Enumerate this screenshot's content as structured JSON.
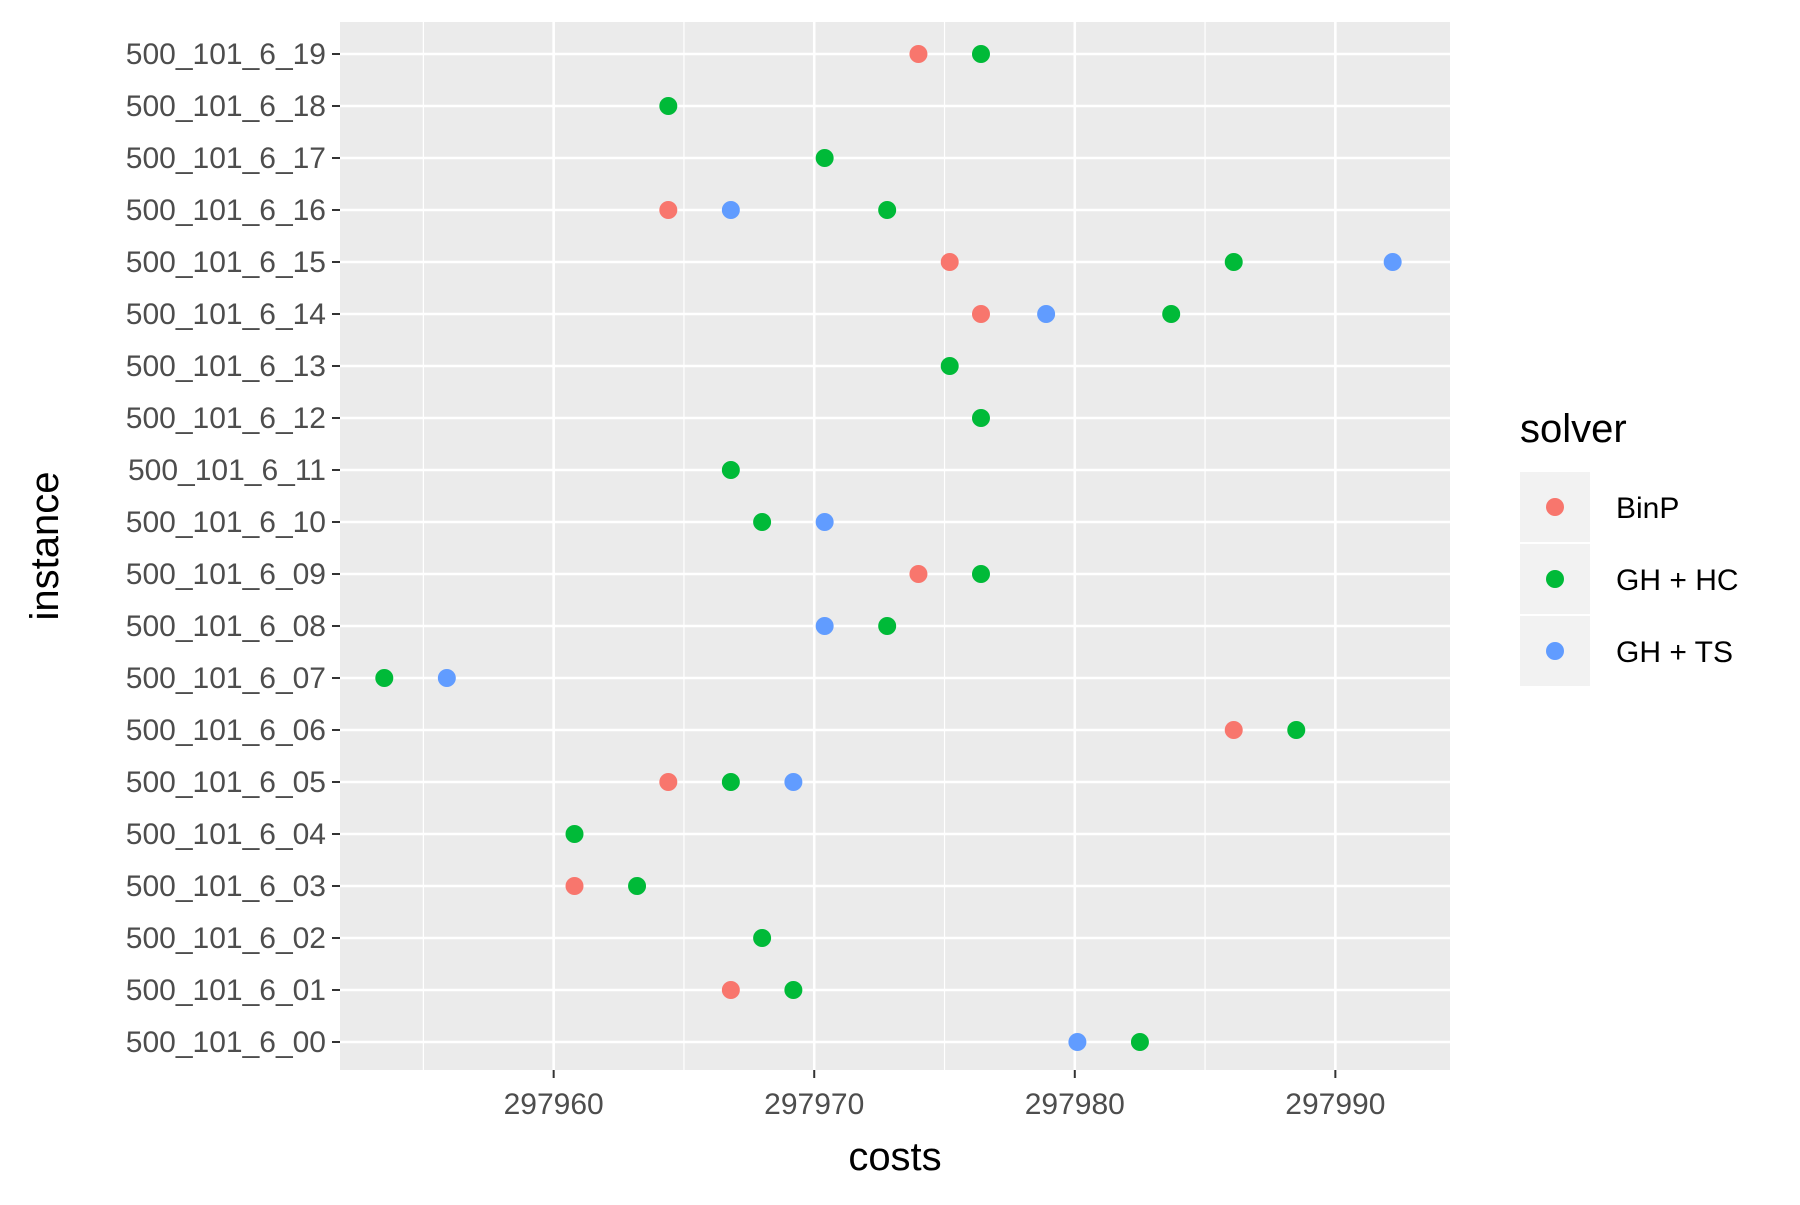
{
  "chart_data": {
    "type": "scatter",
    "xlabel": "costs",
    "ylabel": "instance",
    "xlim": [
      297951.8,
      297994.4
    ],
    "x_ticks": [
      297960,
      297970,
      297980,
      297990
    ],
    "x_tick_labels": [
      "297960",
      "297970",
      "297980",
      "297990"
    ],
    "x_minor_ticks": [
      297955,
      297965,
      297975,
      297985
    ],
    "grid": true,
    "categories": [
      "500_101_6_00",
      "500_101_6_01",
      "500_101_6_02",
      "500_101_6_03",
      "500_101_6_04",
      "500_101_6_05",
      "500_101_6_06",
      "500_101_6_07",
      "500_101_6_08",
      "500_101_6_09",
      "500_101_6_10",
      "500_101_6_11",
      "500_101_6_12",
      "500_101_6_13",
      "500_101_6_14",
      "500_101_6_15",
      "500_101_6_16",
      "500_101_6_17",
      "500_101_6_18",
      "500_101_6_19"
    ],
    "legend": {
      "title": "solver",
      "position": "right"
    },
    "series": [
      {
        "name": "BinP",
        "color": "#F8766D",
        "points": [
          {
            "instance": "500_101_6_19",
            "x": 297974.0
          },
          {
            "instance": "500_101_6_16",
            "x": 297964.4
          },
          {
            "instance": "500_101_6_15",
            "x": 297975.2
          },
          {
            "instance": "500_101_6_14",
            "x": 297976.4
          },
          {
            "instance": "500_101_6_09",
            "x": 297974.0
          },
          {
            "instance": "500_101_6_06",
            "x": 297986.1
          },
          {
            "instance": "500_101_6_05",
            "x": 297964.4
          },
          {
            "instance": "500_101_6_03",
            "x": 297960.8
          },
          {
            "instance": "500_101_6_01",
            "x": 297966.8
          }
        ]
      },
      {
        "name": "GH + HC",
        "color": "#00BA38",
        "points": [
          {
            "instance": "500_101_6_19",
            "x": 297976.4
          },
          {
            "instance": "500_101_6_18",
            "x": 297964.4
          },
          {
            "instance": "500_101_6_17",
            "x": 297970.4
          },
          {
            "instance": "500_101_6_16",
            "x": 297972.8
          },
          {
            "instance": "500_101_6_15",
            "x": 297986.1
          },
          {
            "instance": "500_101_6_14",
            "x": 297983.7
          },
          {
            "instance": "500_101_6_13",
            "x": 297975.2
          },
          {
            "instance": "500_101_6_12",
            "x": 297976.4
          },
          {
            "instance": "500_101_6_11",
            "x": 297966.8
          },
          {
            "instance": "500_101_6_10",
            "x": 297968.0
          },
          {
            "instance": "500_101_6_09",
            "x": 297976.4
          },
          {
            "instance": "500_101_6_08",
            "x": 297972.8
          },
          {
            "instance": "500_101_6_07",
            "x": 297953.5
          },
          {
            "instance": "500_101_6_06",
            "x": 297988.5
          },
          {
            "instance": "500_101_6_05",
            "x": 297966.8
          },
          {
            "instance": "500_101_6_04",
            "x": 297960.8
          },
          {
            "instance": "500_101_6_03",
            "x": 297963.2
          },
          {
            "instance": "500_101_6_02",
            "x": 297968.0
          },
          {
            "instance": "500_101_6_01",
            "x": 297969.2
          },
          {
            "instance": "500_101_6_00",
            "x": 297982.5
          }
        ]
      },
      {
        "name": "GH + TS",
        "color": "#619CFF",
        "points": [
          {
            "instance": "500_101_6_16",
            "x": 297966.8
          },
          {
            "instance": "500_101_6_15",
            "x": 297992.2
          },
          {
            "instance": "500_101_6_14",
            "x": 297978.9
          },
          {
            "instance": "500_101_6_10",
            "x": 297970.4
          },
          {
            "instance": "500_101_6_08",
            "x": 297970.4
          },
          {
            "instance": "500_101_6_07",
            "x": 297955.9
          },
          {
            "instance": "500_101_6_05",
            "x": 297969.2
          },
          {
            "instance": "500_101_6_00",
            "x": 297980.1
          }
        ]
      }
    ]
  }
}
